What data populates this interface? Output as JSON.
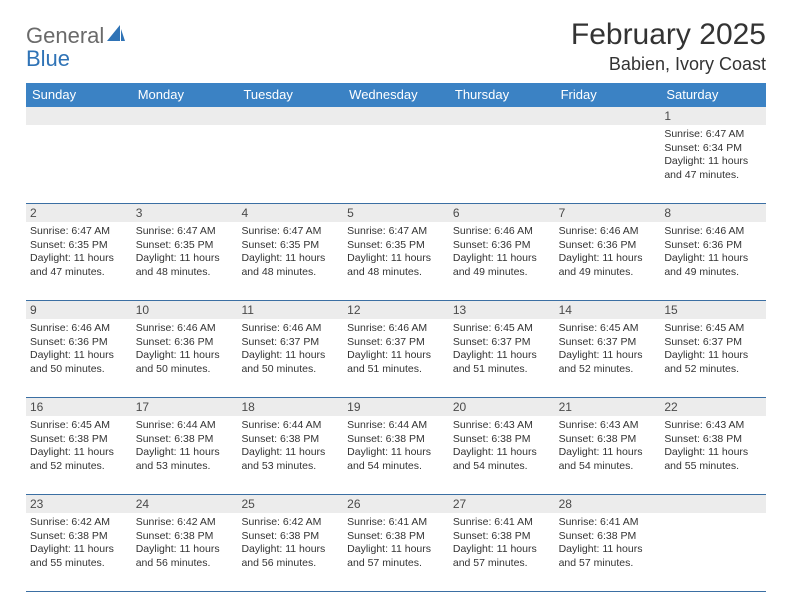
{
  "logo": {
    "line1": "General",
    "line2": "Blue"
  },
  "title": "February 2025",
  "location": "Babien, Ivory Coast",
  "colors": {
    "header_bg": "#3b82c4",
    "header_text": "#ffffff",
    "daynum_bg": "#ececec",
    "border": "#3b6fa3",
    "logo_gray": "#6a6a6a",
    "logo_blue": "#2f73b6"
  },
  "day_headers": [
    "Sunday",
    "Monday",
    "Tuesday",
    "Wednesday",
    "Thursday",
    "Friday",
    "Saturday"
  ],
  "weeks": [
    [
      {
        "n": "",
        "sunrise": "",
        "sunset": "",
        "daylight": ""
      },
      {
        "n": "",
        "sunrise": "",
        "sunset": "",
        "daylight": ""
      },
      {
        "n": "",
        "sunrise": "",
        "sunset": "",
        "daylight": ""
      },
      {
        "n": "",
        "sunrise": "",
        "sunset": "",
        "daylight": ""
      },
      {
        "n": "",
        "sunrise": "",
        "sunset": "",
        "daylight": ""
      },
      {
        "n": "",
        "sunrise": "",
        "sunset": "",
        "daylight": ""
      },
      {
        "n": "1",
        "sunrise": "Sunrise: 6:47 AM",
        "sunset": "Sunset: 6:34 PM",
        "daylight": "Daylight: 11 hours and 47 minutes."
      }
    ],
    [
      {
        "n": "2",
        "sunrise": "Sunrise: 6:47 AM",
        "sunset": "Sunset: 6:35 PM",
        "daylight": "Daylight: 11 hours and 47 minutes."
      },
      {
        "n": "3",
        "sunrise": "Sunrise: 6:47 AM",
        "sunset": "Sunset: 6:35 PM",
        "daylight": "Daylight: 11 hours and 48 minutes."
      },
      {
        "n": "4",
        "sunrise": "Sunrise: 6:47 AM",
        "sunset": "Sunset: 6:35 PM",
        "daylight": "Daylight: 11 hours and 48 minutes."
      },
      {
        "n": "5",
        "sunrise": "Sunrise: 6:47 AM",
        "sunset": "Sunset: 6:35 PM",
        "daylight": "Daylight: 11 hours and 48 minutes."
      },
      {
        "n": "6",
        "sunrise": "Sunrise: 6:46 AM",
        "sunset": "Sunset: 6:36 PM",
        "daylight": "Daylight: 11 hours and 49 minutes."
      },
      {
        "n": "7",
        "sunrise": "Sunrise: 6:46 AM",
        "sunset": "Sunset: 6:36 PM",
        "daylight": "Daylight: 11 hours and 49 minutes."
      },
      {
        "n": "8",
        "sunrise": "Sunrise: 6:46 AM",
        "sunset": "Sunset: 6:36 PM",
        "daylight": "Daylight: 11 hours and 49 minutes."
      }
    ],
    [
      {
        "n": "9",
        "sunrise": "Sunrise: 6:46 AM",
        "sunset": "Sunset: 6:36 PM",
        "daylight": "Daylight: 11 hours and 50 minutes."
      },
      {
        "n": "10",
        "sunrise": "Sunrise: 6:46 AM",
        "sunset": "Sunset: 6:36 PM",
        "daylight": "Daylight: 11 hours and 50 minutes."
      },
      {
        "n": "11",
        "sunrise": "Sunrise: 6:46 AM",
        "sunset": "Sunset: 6:37 PM",
        "daylight": "Daylight: 11 hours and 50 minutes."
      },
      {
        "n": "12",
        "sunrise": "Sunrise: 6:46 AM",
        "sunset": "Sunset: 6:37 PM",
        "daylight": "Daylight: 11 hours and 51 minutes."
      },
      {
        "n": "13",
        "sunrise": "Sunrise: 6:45 AM",
        "sunset": "Sunset: 6:37 PM",
        "daylight": "Daylight: 11 hours and 51 minutes."
      },
      {
        "n": "14",
        "sunrise": "Sunrise: 6:45 AM",
        "sunset": "Sunset: 6:37 PM",
        "daylight": "Daylight: 11 hours and 52 minutes."
      },
      {
        "n": "15",
        "sunrise": "Sunrise: 6:45 AM",
        "sunset": "Sunset: 6:37 PM",
        "daylight": "Daylight: 11 hours and 52 minutes."
      }
    ],
    [
      {
        "n": "16",
        "sunrise": "Sunrise: 6:45 AM",
        "sunset": "Sunset: 6:38 PM",
        "daylight": "Daylight: 11 hours and 52 minutes."
      },
      {
        "n": "17",
        "sunrise": "Sunrise: 6:44 AM",
        "sunset": "Sunset: 6:38 PM",
        "daylight": "Daylight: 11 hours and 53 minutes."
      },
      {
        "n": "18",
        "sunrise": "Sunrise: 6:44 AM",
        "sunset": "Sunset: 6:38 PM",
        "daylight": "Daylight: 11 hours and 53 minutes."
      },
      {
        "n": "19",
        "sunrise": "Sunrise: 6:44 AM",
        "sunset": "Sunset: 6:38 PM",
        "daylight": "Daylight: 11 hours and 54 minutes."
      },
      {
        "n": "20",
        "sunrise": "Sunrise: 6:43 AM",
        "sunset": "Sunset: 6:38 PM",
        "daylight": "Daylight: 11 hours and 54 minutes."
      },
      {
        "n": "21",
        "sunrise": "Sunrise: 6:43 AM",
        "sunset": "Sunset: 6:38 PM",
        "daylight": "Daylight: 11 hours and 54 minutes."
      },
      {
        "n": "22",
        "sunrise": "Sunrise: 6:43 AM",
        "sunset": "Sunset: 6:38 PM",
        "daylight": "Daylight: 11 hours and 55 minutes."
      }
    ],
    [
      {
        "n": "23",
        "sunrise": "Sunrise: 6:42 AM",
        "sunset": "Sunset: 6:38 PM",
        "daylight": "Daylight: 11 hours and 55 minutes."
      },
      {
        "n": "24",
        "sunrise": "Sunrise: 6:42 AM",
        "sunset": "Sunset: 6:38 PM",
        "daylight": "Daylight: 11 hours and 56 minutes."
      },
      {
        "n": "25",
        "sunrise": "Sunrise: 6:42 AM",
        "sunset": "Sunset: 6:38 PM",
        "daylight": "Daylight: 11 hours and 56 minutes."
      },
      {
        "n": "26",
        "sunrise": "Sunrise: 6:41 AM",
        "sunset": "Sunset: 6:38 PM",
        "daylight": "Daylight: 11 hours and 57 minutes."
      },
      {
        "n": "27",
        "sunrise": "Sunrise: 6:41 AM",
        "sunset": "Sunset: 6:38 PM",
        "daylight": "Daylight: 11 hours and 57 minutes."
      },
      {
        "n": "28",
        "sunrise": "Sunrise: 6:41 AM",
        "sunset": "Sunset: 6:38 PM",
        "daylight": "Daylight: 11 hours and 57 minutes."
      },
      {
        "n": "",
        "sunrise": "",
        "sunset": "",
        "daylight": ""
      }
    ]
  ]
}
